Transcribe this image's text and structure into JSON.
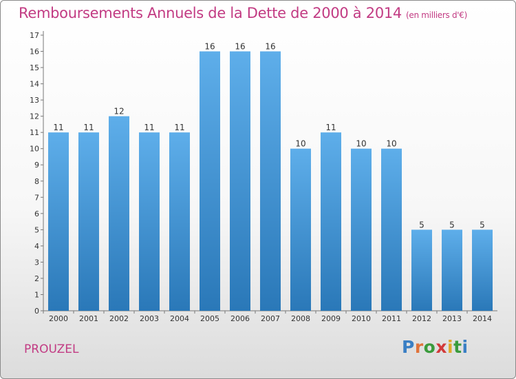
{
  "title": "Remboursements Annuels de la Dette de 2000 à 2014",
  "subtitle": "(en milliers d'€)",
  "commune": "PROUZEL",
  "brand": {
    "letters": [
      "P",
      "r",
      "o",
      "x",
      "i",
      "t",
      "i"
    ],
    "colors": [
      "#3a7fc4",
      "#e0733a",
      "#3a9b3c",
      "#d23a3a",
      "#e0a92a",
      "#3a9b3c",
      "#3a7fc4"
    ]
  },
  "chart_data": {
    "type": "bar",
    "title": "Remboursements Annuels de la Dette de 2000 à 2014",
    "subtitle": "(en milliers d'€)",
    "categories": [
      "2000",
      "2001",
      "2002",
      "2003",
      "2004",
      "2005",
      "2006",
      "2007",
      "2008",
      "2009",
      "2010",
      "2011",
      "2012",
      "2013",
      "2014"
    ],
    "values": [
      11,
      11,
      12,
      11,
      11,
      16,
      16,
      16,
      10,
      11,
      10,
      10,
      5,
      5,
      5
    ],
    "ylim": [
      0,
      17
    ],
    "yticks": [
      0,
      1,
      2,
      3,
      4,
      5,
      6,
      7,
      8,
      9,
      10,
      11,
      12,
      13,
      14,
      15,
      16,
      17
    ],
    "grid": false,
    "colors": {
      "bar_light": "#5eaeea",
      "bar_dark": "#2a78b8",
      "title": "#c23b83"
    }
  }
}
